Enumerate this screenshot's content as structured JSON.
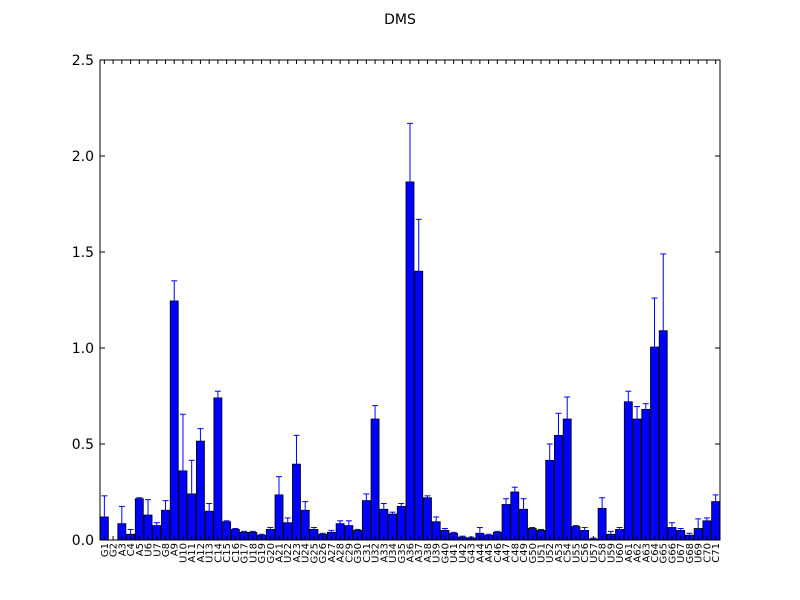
{
  "chart_data": {
    "type": "bar",
    "title": "DMS",
    "xlabel": "",
    "ylabel": "",
    "ylim": [
      0,
      2.5
    ],
    "yticks": [
      "0.0",
      "0.5",
      "1.0",
      "1.5",
      "2.0",
      "2.5"
    ],
    "bar_color": "#0000ff",
    "error_color": "#0000ff",
    "categories": [
      "G1",
      "G2",
      "A3",
      "C4",
      "A5",
      "U6",
      "U7",
      "G8",
      "A9",
      "U10",
      "A11",
      "A12",
      "U13",
      "C14",
      "C15",
      "C16",
      "G17",
      "U18",
      "G19",
      "G20",
      "A21",
      "U22",
      "A23",
      "U24",
      "G25",
      "G26",
      "A27",
      "A28",
      "C29",
      "G30",
      "C31",
      "U32",
      "A33",
      "U34",
      "G35",
      "A36",
      "A37",
      "A38",
      "U39",
      "G40",
      "U41",
      "U42",
      "G43",
      "A44",
      "A45",
      "C46",
      "A47",
      "C48",
      "C49",
      "G50",
      "U51",
      "U52",
      "A53",
      "C54",
      "U55",
      "C56",
      "U57",
      "C58",
      "U59",
      "U60",
      "A61",
      "A62",
      "A63",
      "C64",
      "G65",
      "G66",
      "U67",
      "G68",
      "U69",
      "C70",
      "C71"
    ],
    "values": [
      0.12,
      0.0,
      0.085,
      0.03,
      0.215,
      0.13,
      0.075,
      0.155,
      1.245,
      0.36,
      0.24,
      0.515,
      0.15,
      0.74,
      0.095,
      0.055,
      0.04,
      0.04,
      0.025,
      0.055,
      0.235,
      0.09,
      0.395,
      0.155,
      0.055,
      0.03,
      0.04,
      0.085,
      0.075,
      0.05,
      0.205,
      0.63,
      0.16,
      0.135,
      0.175,
      1.865,
      1.4,
      0.22,
      0.095,
      0.05,
      0.035,
      0.015,
      0.01,
      0.035,
      0.025,
      0.04,
      0.185,
      0.25,
      0.16,
      0.06,
      0.05,
      0.415,
      0.545,
      0.63,
      0.07,
      0.05,
      0.005,
      0.165,
      0.03,
      0.055,
      0.72,
      0.63,
      0.68,
      1.005,
      1.09,
      0.065,
      0.05,
      0.025,
      0.06,
      0.1,
      0.2
    ],
    "errors": [
      0.11,
      0.0,
      0.09,
      0.025,
      0.005,
      0.08,
      0.015,
      0.05,
      0.105,
      0.295,
      0.175,
      0.065,
      0.04,
      0.035,
      0.005,
      0.005,
      0.005,
      0.005,
      0.005,
      0.01,
      0.095,
      0.025,
      0.15,
      0.045,
      0.01,
      0.005,
      0.01,
      0.015,
      0.025,
      0.005,
      0.035,
      0.07,
      0.03,
      0.01,
      0.015,
      0.305,
      0.27,
      0.01,
      0.025,
      0.01,
      0.005,
      0.005,
      0.005,
      0.03,
      0.005,
      0.005,
      0.03,
      0.025,
      0.055,
      0.005,
      0.005,
      0.085,
      0.115,
      0.115,
      0.005,
      0.015,
      0.005,
      0.055,
      0.015,
      0.01,
      0.055,
      0.065,
      0.03,
      0.255,
      0.4,
      0.025,
      0.01,
      0.01,
      0.05,
      0.015,
      0.035
    ]
  }
}
